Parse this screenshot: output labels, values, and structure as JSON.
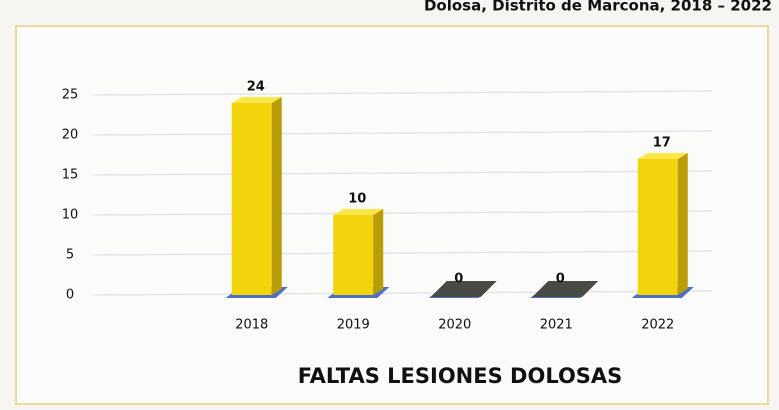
{
  "chart_data": {
    "type": "bar",
    "title": "Dolosa, Distrito de Marcona, 2018 – 2022",
    "x_label": "FALTAS LESIONES DOLOSAS",
    "categories": [
      "2018",
      "2019",
      "2020",
      "2021",
      "2022"
    ],
    "values": [
      24,
      10,
      0,
      0,
      17
    ],
    "color": "#f2d40c",
    "ylim": [
      0,
      25
    ],
    "yticks": [
      0,
      5,
      10,
      15,
      20,
      25
    ],
    "grid": true
  }
}
